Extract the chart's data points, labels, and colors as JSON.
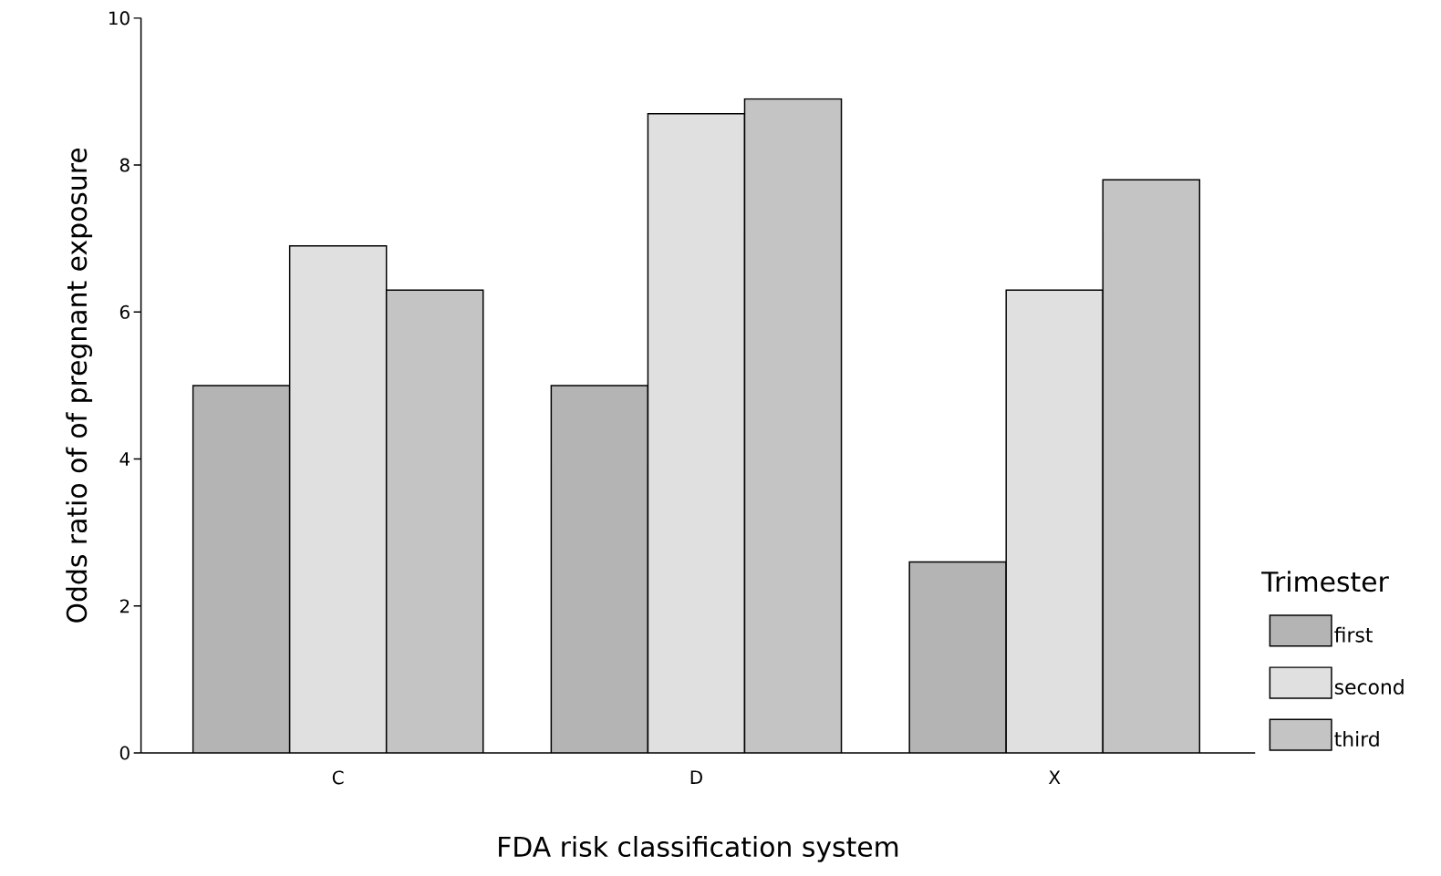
{
  "chart_data": {
    "type": "bar",
    "xlabel": "FDA risk classification system",
    "ylabel": "Odds ratio of of pregnant exposure",
    "legend_title": "Trimester",
    "categories": [
      "C",
      "D",
      "X"
    ],
    "series": [
      {
        "name": "first",
        "color": "#b4b4b4",
        "values": [
          5.0,
          5.0,
          2.6
        ]
      },
      {
        "name": "second",
        "color": "#e0e0e0",
        "values": [
          6.9,
          8.7,
          6.3
        ]
      },
      {
        "name": "third",
        "color": "#c4c4c4",
        "values": [
          6.3,
          8.9,
          7.8
        ]
      }
    ],
    "ylim": [
      0,
      10
    ],
    "yticks": [
      0,
      2,
      4,
      6,
      8,
      10
    ],
    "legend": "right"
  }
}
